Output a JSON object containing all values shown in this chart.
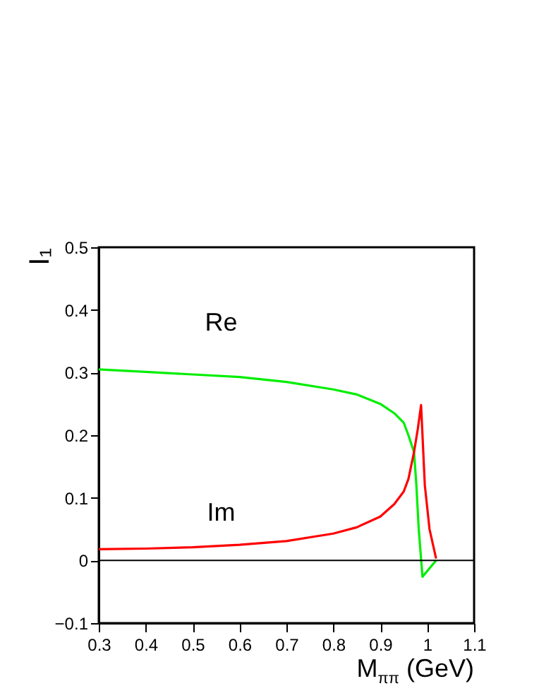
{
  "chart_data": {
    "type": "line",
    "xlabel": "M$_{ππ}$ (GeV)",
    "ylabel": "I₁",
    "xlim": [
      0.3,
      1.1
    ],
    "xticks": [
      0.3,
      0.4,
      0.5,
      0.6,
      0.7,
      0.8,
      0.9,
      1,
      1.1
    ],
    "ylim": [
      -0.1,
      0.5
    ],
    "yticks": [
      -0.1,
      0,
      0.1,
      0.2,
      0.3,
      0.4,
      0.5
    ],
    "grid": false,
    "marker": "none",
    "line_style": "solid",
    "series": [
      {
        "name": "Re",
        "color": "#00ee00",
        "x": [
          0.3,
          0.4,
          0.5,
          0.6,
          0.7,
          0.8,
          0.85,
          0.9,
          0.93,
          0.95,
          0.96,
          0.972,
          0.977,
          0.982,
          0.99,
          1.019
        ],
        "values": [
          0.305,
          0.301,
          0.297,
          0.293,
          0.285,
          0.273,
          0.265,
          0.25,
          0.235,
          0.22,
          0.2,
          0.173,
          0.12,
          0.05,
          -0.026,
          0.0
        ]
      },
      {
        "name": "Im",
        "color": "#ff0000",
        "x": [
          0.3,
          0.4,
          0.5,
          0.6,
          0.7,
          0.8,
          0.85,
          0.9,
          0.93,
          0.95,
          0.96,
          0.972,
          0.98,
          0.987,
          0.995,
          1.005,
          1.019
        ],
        "values": [
          0.018,
          0.019,
          0.021,
          0.025,
          0.031,
          0.043,
          0.053,
          0.07,
          0.09,
          0.11,
          0.13,
          0.173,
          0.21,
          0.248,
          0.12,
          0.05,
          0.003
        ]
      }
    ],
    "ref_lines": [
      {
        "axis": "y",
        "value": 0,
        "color": "#000000"
      }
    ]
  }
}
